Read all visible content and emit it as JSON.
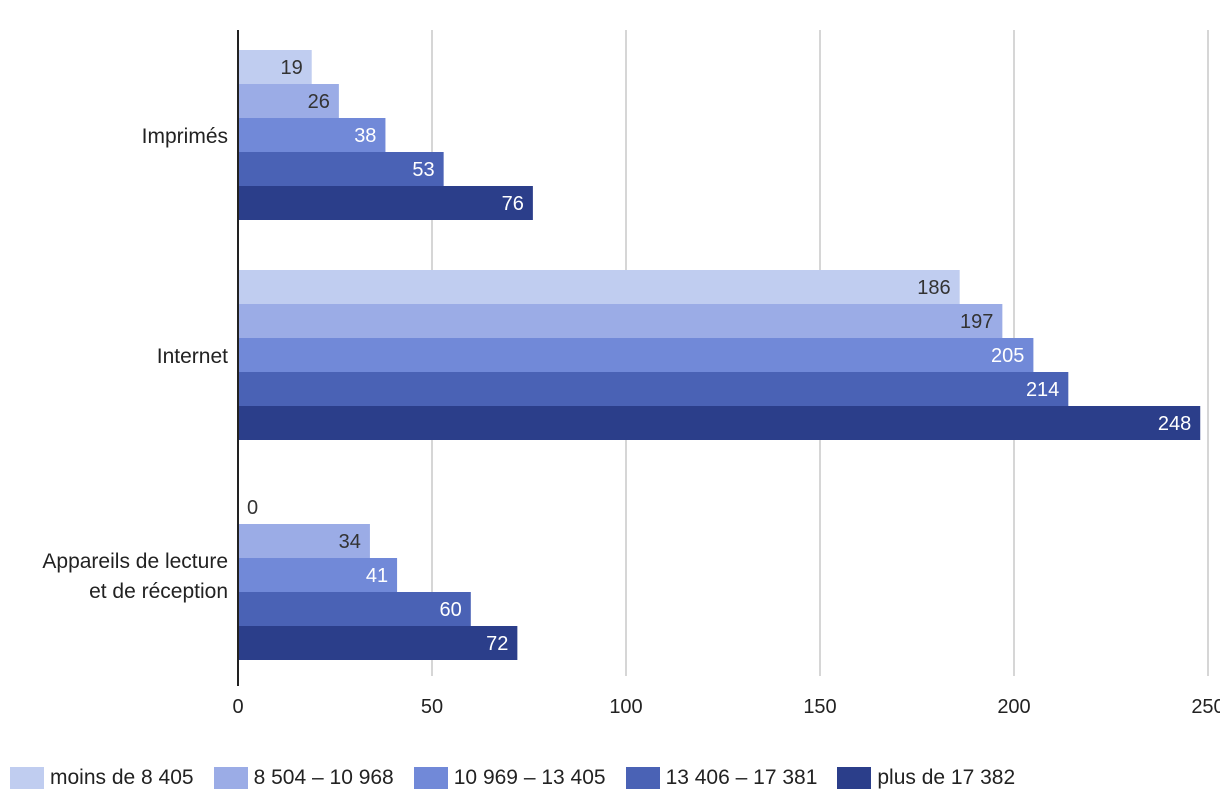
{
  "chart_data": {
    "type": "bar",
    "orientation": "horizontal",
    "categories": [
      "Imprimés",
      "Internet",
      "Appareils de lecture et de réception"
    ],
    "category_lines": [
      [
        "Imprimés"
      ],
      [
        "Internet"
      ],
      [
        "Appareils de lecture",
        "et de réception"
      ]
    ],
    "series": [
      {
        "name": "moins de 8 405",
        "color": "#c0cdf0",
        "label_color": "#333333",
        "values": [
          19,
          186,
          0
        ]
      },
      {
        "name": "8 504 – 10 968",
        "color": "#9bace6",
        "label_color": "#333333",
        "values": [
          26,
          197,
          34
        ]
      },
      {
        "name": "10 969 – 13 405",
        "color": "#7189d8",
        "label_color": "#ffffff",
        "values": [
          38,
          205,
          41
        ]
      },
      {
        "name": "13 406 – 17 381",
        "color": "#4a62b5",
        "label_color": "#ffffff",
        "values": [
          53,
          214,
          60
        ]
      },
      {
        "name": "plus de 17 382",
        "color": "#2b3e8a",
        "label_color": "#ffffff",
        "values": [
          76,
          248,
          72
        ]
      }
    ],
    "xlim": [
      0,
      250
    ],
    "xticks": [
      0,
      50,
      100,
      150,
      200,
      250
    ],
    "xtick_labels": [
      "0",
      "50",
      "100",
      "150",
      "200",
      "250"
    ],
    "grid": true,
    "legend_position": "bottom",
    "title": "",
    "xlabel": "",
    "ylabel": ""
  }
}
